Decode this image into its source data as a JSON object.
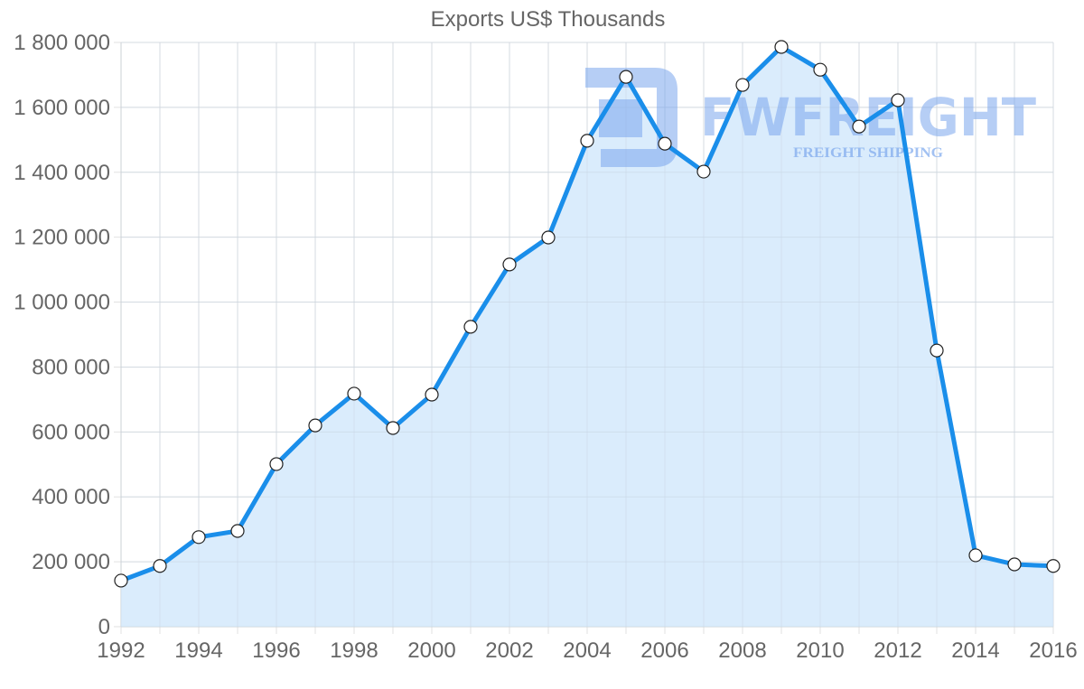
{
  "chart_data": {
    "type": "area",
    "title": "Exports US$ Thousands",
    "xlabel": "",
    "ylabel": "",
    "x": [
      1992,
      1993,
      1994,
      1995,
      1996,
      1997,
      1998,
      1999,
      2000,
      2001,
      2002,
      2003,
      2004,
      2005,
      2006,
      2007,
      2008,
      2009,
      2010,
      2011,
      2012,
      2013,
      2014,
      2015,
      2016
    ],
    "series": [
      {
        "name": "Exports US$ Thousands",
        "values": [
          142000,
          187000,
          276000,
          295000,
          501000,
          620000,
          718000,
          612000,
          715000,
          924000,
          1116000,
          1199000,
          1497000,
          1694000,
          1488000,
          1402000,
          1669000,
          1786000,
          1716000,
          1541000,
          1622000,
          851000,
          220000,
          192000,
          187000
        ]
      }
    ],
    "ylim": [
      0,
      1800000
    ],
    "xlim": [
      1992,
      2016
    ],
    "y_ticks": [
      0,
      200000,
      400000,
      600000,
      800000,
      1000000,
      1200000,
      1400000,
      1600000,
      1800000
    ],
    "y_tick_labels": [
      "0",
      "200 000",
      "400 000",
      "600 000",
      "800 000",
      "1 000 000",
      "1 200 000",
      "1 400 000",
      "1 600 000",
      "1 800 000"
    ],
    "x_tick_labels": [
      "1992",
      "1994",
      "1996",
      "1998",
      "2000",
      "2002",
      "2004",
      "2006",
      "2008",
      "2010",
      "2012",
      "2014",
      "2016"
    ],
    "grid": true,
    "legend": "none",
    "colors": {
      "line": "#1a8eea",
      "fill": "#d8ebfc",
      "point_fill": "#ffffff",
      "point_stroke": "#222222",
      "grid": "#e2e2e2",
      "axis_text": "#666666"
    }
  },
  "watermark": {
    "brand": "FWFREIGHT",
    "tagline": "FREIGHT SHIPPING",
    "color": "#7aa6ec"
  }
}
